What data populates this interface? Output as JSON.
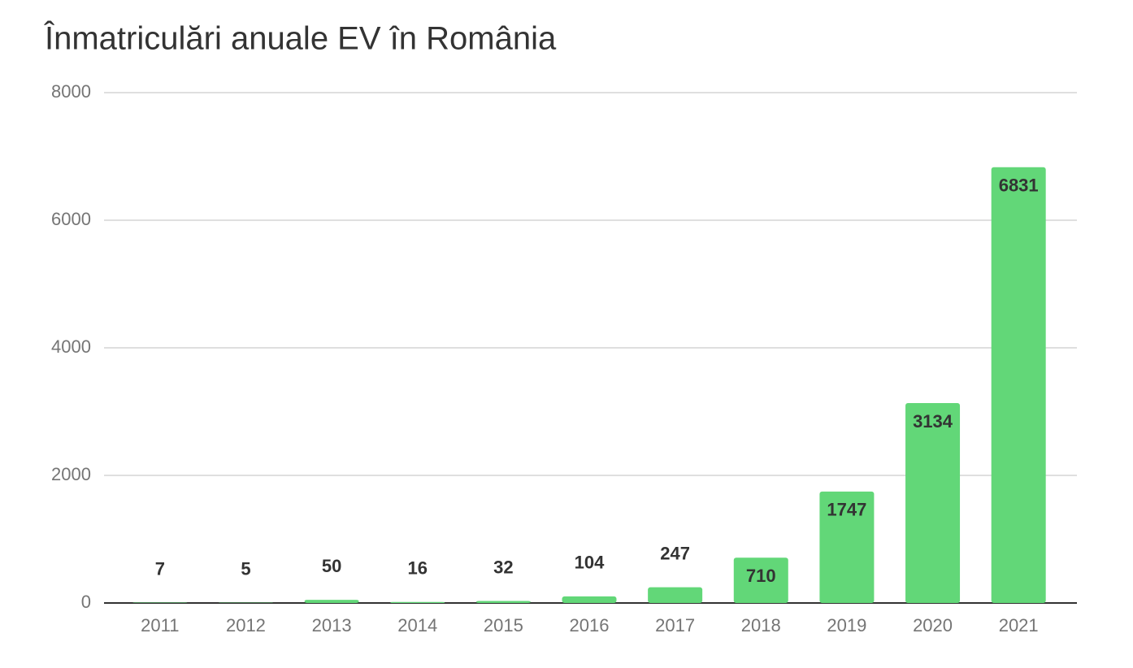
{
  "chart_data": {
    "type": "bar",
    "title": "Înmatriculări anuale EV în România",
    "categories": [
      "2011",
      "2012",
      "2013",
      "2014",
      "2015",
      "2016",
      "2017",
      "2018",
      "2019",
      "2020",
      "2021"
    ],
    "values": [
      7,
      5,
      50,
      16,
      32,
      104,
      247,
      710,
      1747,
      3134,
      6831
    ],
    "color": "#62d778",
    "ylim": [
      0,
      8000
    ],
    "yticks": [
      0,
      2000,
      4000,
      6000,
      8000
    ],
    "grid": true
  }
}
